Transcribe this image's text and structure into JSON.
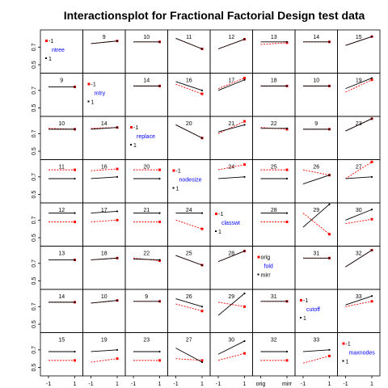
{
  "chart_data": {
    "type": "line",
    "title": "Interactionsplot for Fractional Factorial Design test data",
    "factors": [
      "ntree",
      "mtry",
      "replace",
      "nodesize",
      "classwt",
      "fold",
      "cutoff",
      "maxnodes"
    ],
    "diag_levels": [
      [
        "-1",
        "1"
      ],
      [
        "-1",
        "1"
      ],
      [
        "-1",
        "1"
      ],
      [
        "-1",
        "1"
      ],
      [
        "-1",
        "1"
      ],
      [
        "orig",
        "mirr"
      ],
      [
        "-1",
        "1"
      ],
      [
        "-1",
        "1"
      ]
    ],
    "diag_extra": {
      "5": [
        "fold"
      ]
    },
    "x_tick_labels": [
      [
        "-1",
        "1"
      ],
      [
        "-1",
        "1"
      ],
      [
        "-1",
        "1"
      ],
      [
        "-1",
        "1"
      ],
      [
        "-1",
        "1"
      ],
      [
        "orig",
        "mirr"
      ],
      [
        "-1",
        "1"
      ],
      [
        "-1",
        "1"
      ]
    ],
    "y_ticks": [
      0.5,
      0.7
    ],
    "ylim": [
      0.45,
      0.85
    ],
    "cell_labels": [
      [
        "",
        "9",
        "10",
        "11",
        "12",
        "13",
        "14",
        "15"
      ],
      [
        "9",
        "",
        "14",
        "16",
        "17",
        "18",
        "10",
        "19"
      ],
      [
        "10",
        "14",
        "",
        "20",
        "21",
        "22",
        "9",
        "23"
      ],
      [
        "11",
        "16",
        "20",
        "",
        "24",
        "25",
        "26",
        "27"
      ],
      [
        "12",
        "17",
        "21",
        "24",
        "",
        "28",
        "29",
        "30"
      ],
      [
        "13",
        "18",
        "22",
        "25",
        "28",
        "",
        "31",
        "32"
      ],
      [
        "14",
        "10",
        "9",
        "26",
        "29",
        "31",
        "",
        "33"
      ],
      [
        "15",
        "19",
        "23",
        "27",
        "30",
        "32",
        "33",
        ""
      ]
    ],
    "cells": [
      [
        null,
        {
          "a": [
            0.74,
            0.77
          ],
          "b": [
            0.74,
            0.77
          ]
        },
        {
          "a": [
            0.76,
            0.76
          ],
          "b": [
            0.76,
            0.76
          ]
        },
        {
          "a": [
            0.8,
            0.68
          ],
          "b": [
            0.8,
            0.68
          ]
        },
        {
          "a": [
            0.68,
            0.79
          ],
          "b": [
            0.68,
            0.79
          ]
        },
        {
          "a": [
            0.76,
            0.76
          ],
          "b": [
            0.73,
            0.75
          ]
        },
        {
          "a": [
            0.76,
            0.76
          ],
          "b": [
            0.76,
            0.76
          ]
        },
        {
          "a": [
            0.72,
            0.82
          ],
          "b": [
            0.72,
            0.82
          ]
        }
      ],
      [
        {
          "a": [
            0.74,
            0.74
          ],
          "b": [
            0.74,
            0.74
          ]
        },
        null,
        {
          "a": [
            0.75,
            0.75
          ],
          "b": [
            0.75,
            0.75
          ]
        },
        {
          "a": [
            0.8,
            0.7
          ],
          "b": [
            0.77,
            0.66
          ]
        },
        {
          "a": [
            0.7,
            0.82
          ],
          "b": [
            0.72,
            0.84
          ]
        },
        {
          "a": [
            0.75,
            0.75
          ],
          "b": [
            0.75,
            0.75
          ]
        },
        {
          "a": [
            0.75,
            0.75
          ],
          "b": [
            0.75,
            0.75
          ]
        },
        {
          "a": [
            0.72,
            0.84
          ],
          "b": [
            0.68,
            0.82
          ]
        }
      ],
      [
        {
          "a": [
            0.75,
            0.75
          ],
          "b": [
            0.76,
            0.75
          ]
        },
        {
          "a": [
            0.75,
            0.77
          ],
          "b": [
            0.76,
            0.77
          ]
        },
        null,
        {
          "a": [
            0.8,
            0.65
          ],
          "b": [
            0.8,
            0.65
          ]
        },
        {
          "a": [
            0.72,
            0.8
          ],
          "b": [
            0.7,
            0.84
          ]
        },
        {
          "a": [
            0.76,
            0.76
          ],
          "b": [
            0.77,
            0.75
          ]
        },
        {
          "a": [
            0.75,
            0.75
          ],
          "b": [
            0.75,
            0.75
          ]
        },
        {
          "a": [
            0.73,
            0.87
          ],
          "b": [
            0.73,
            0.87
          ]
        }
      ],
      [
        {
          "a": [
            0.68,
            0.68
          ],
          "b": [
            0.78,
            0.78
          ]
        },
        {
          "a": [
            0.68,
            0.7
          ],
          "b": [
            0.77,
            0.79
          ]
        },
        {
          "a": [
            0.68,
            0.68
          ],
          "b": [
            0.78,
            0.78
          ]
        },
        null,
        {
          "a": [
            0.68,
            0.7
          ],
          "b": [
            0.78,
            0.84
          ]
        },
        {
          "a": [
            0.68,
            0.68
          ],
          "b": [
            0.78,
            0.78
          ]
        },
        {
          "a": [
            0.62,
            0.72
          ],
          "b": [
            0.78,
            0.72
          ]
        },
        {
          "a": [
            0.68,
            0.7
          ],
          "b": [
            0.68,
            0.87
          ]
        }
      ],
      [
        {
          "a": [
            0.78,
            0.78
          ],
          "b": [
            0.68,
            0.68
          ]
        },
        {
          "a": [
            0.78,
            0.8
          ],
          "b": [
            0.68,
            0.7
          ]
        },
        {
          "a": [
            0.78,
            0.78
          ],
          "b": [
            0.68,
            0.68
          ]
        },
        {
          "a": [
            0.78,
            0.78
          ],
          "b": [
            0.7,
            0.6
          ]
        },
        null,
        {
          "a": [
            0.78,
            0.78
          ],
          "b": [
            0.68,
            0.68
          ]
        },
        {
          "a": [
            0.62,
            0.88
          ],
          "b": [
            0.78,
            0.54
          ]
        },
        {
          "a": [
            0.7,
            0.82
          ],
          "b": [
            0.66,
            0.71
          ]
        }
      ],
      [
        {
          "a": [
            0.74,
            0.74
          ],
          "b": [
            0.74,
            0.74
          ]
        },
        {
          "a": [
            0.74,
            0.76
          ],
          "b": [
            0.74,
            0.76
          ]
        },
        {
          "a": [
            0.75,
            0.74
          ],
          "b": [
            0.76,
            0.73
          ]
        },
        {
          "a": [
            0.79,
            0.68
          ],
          "b": [
            0.79,
            0.68
          ]
        },
        {
          "a": [
            0.72,
            0.84
          ],
          "b": [
            0.72,
            0.84
          ]
        },
        null,
        {
          "a": [
            0.76,
            0.76
          ],
          "b": [
            0.76,
            0.76
          ]
        },
        {
          "a": [
            0.66,
            0.85
          ],
          "b": [
            0.66,
            0.85
          ]
        }
      ],
      [
        {
          "a": [
            0.75,
            0.75
          ],
          "b": [
            0.75,
            0.75
          ]
        },
        {
          "a": [
            0.74,
            0.77
          ],
          "b": [
            0.74,
            0.77
          ]
        },
        {
          "a": [
            0.76,
            0.76
          ],
          "b": [
            0.76,
            0.76
          ]
        },
        {
          "a": [
            0.79,
            0.7
          ],
          "b": [
            0.73,
            0.65
          ]
        },
        {
          "a": [
            0.6,
            0.85
          ],
          "b": [
            0.75,
            0.7
          ]
        },
        {
          "a": [
            0.76,
            0.76
          ],
          "b": [
            0.76,
            0.76
          ]
        },
        null,
        {
          "a": [
            0.72,
            0.82
          ],
          "b": [
            0.7,
            0.76
          ]
        }
      ],
      [
        {
          "a": [
            0.68,
            0.68
          ],
          "b": [
            0.58,
            0.58
          ]
        },
        {
          "a": [
            0.68,
            0.7
          ],
          "b": [
            0.56,
            0.6
          ]
        },
        {
          "a": [
            0.68,
            0.68
          ],
          "b": [
            0.58,
            0.58
          ]
        },
        {
          "a": [
            0.72,
            0.56
          ],
          "b": [
            0.6,
            0.58
          ]
        },
        {
          "a": [
            0.65,
            0.8
          ],
          "b": [
            0.58,
            0.66
          ]
        },
        {
          "a": [
            0.68,
            0.68
          ],
          "b": [
            0.58,
            0.58
          ]
        },
        {
          "a": [
            0.68,
            0.7
          ],
          "b": [
            0.55,
            0.63
          ]
        },
        null
      ]
    ],
    "colors": {
      "level_a": "#000000",
      "level_b": "#ff0000",
      "factor_name": "#0000ff"
    }
  }
}
